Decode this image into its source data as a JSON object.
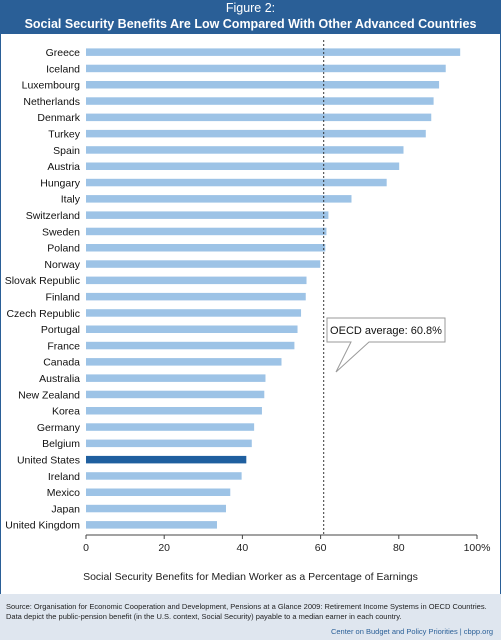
{
  "header": {
    "figure_number": "Figure 2:",
    "title": "Social Security Benefits Are Low Compared With Other Advanced Countries"
  },
  "footer": {
    "source": "Source: Organisation for Economic Cooperation and Development, Pensions at a Glance 2009: Retirement Income Systems in OECD Countries. Data depict the public-pension benefit (in the U.S. context, Social Security) payable to a median earner in each country.",
    "credit": "Center on Budget and Policy Priorities | cbpp.org"
  },
  "colors": {
    "bar": "#9dc3e6",
    "highlight": "#1f5f9f",
    "header": "#2a5f97"
  },
  "chart_data": {
    "type": "bar",
    "orientation": "horizontal",
    "categories": [
      "Greece",
      "Iceland",
      "Luxembourg",
      "Netherlands",
      "Denmark",
      "Turkey",
      "Spain",
      "Austria",
      "Hungary",
      "Italy",
      "Switzerland",
      "Sweden",
      "Poland",
      "Norway",
      "Slovak Republic",
      "Finland",
      "Czech Republic",
      "Portugal",
      "France",
      "Canada",
      "Australia",
      "New Zealand",
      "Korea",
      "Germany",
      "Belgium",
      "United States",
      "Ireland",
      "Mexico",
      "Japan",
      "United Kingdom"
    ],
    "values": [
      95.7,
      92.0,
      90.3,
      88.9,
      88.3,
      86.9,
      81.2,
      80.1,
      76.9,
      67.9,
      62.0,
      61.5,
      61.2,
      59.9,
      56.4,
      56.2,
      55.0,
      54.1,
      53.3,
      50.0,
      45.9,
      45.6,
      45.0,
      43.0,
      42.4,
      41.0,
      39.8,
      36.9,
      35.8,
      33.5
    ],
    "highlight": "United States",
    "xlabel": "Social Security Benefits for Median Worker as a Percentage of Earnings",
    "xlim": [
      0,
      100
    ],
    "xticks": [
      "0",
      "20",
      "40",
      "60",
      "80",
      "100%"
    ],
    "reference_line": {
      "value": 60.8,
      "label": "OECD average: 60.8%"
    },
    "grid": false
  }
}
